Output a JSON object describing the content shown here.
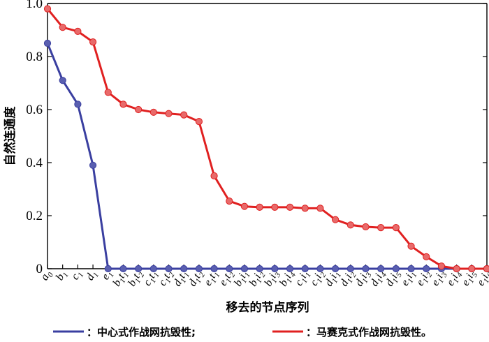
{
  "chart_data": {
    "type": "line",
    "ylabel": "自然连通度",
    "xlabel": "移去的节点序列",
    "ylim": [
      0,
      1.0
    ],
    "yticks": [
      "0",
      "0.2",
      "0.4",
      "0.6",
      "0.8",
      "1.0"
    ],
    "categories": [
      {
        "base": "a",
        "sub": "0"
      },
      {
        "base": "b",
        "sub": "1"
      },
      {
        "base": "c",
        "sub": "1"
      },
      {
        "base": "d",
        "sub": "1"
      },
      {
        "base": "e",
        "sub": "1"
      },
      {
        "base": "b",
        "sub": "1",
        "base2": "t",
        "sub2": "1"
      },
      {
        "base": "b",
        "sub": "1",
        "base2": "t",
        "sub2": "2"
      },
      {
        "base": "c",
        "sub": "1",
        "base2": "t",
        "sub2": "1"
      },
      {
        "base": "c",
        "sub": "1",
        "base2": "t",
        "sub2": "2"
      },
      {
        "base": "d",
        "sub": "1",
        "base2": "t",
        "sub2": "1"
      },
      {
        "base": "d",
        "sub": "1",
        "base2": "t",
        "sub2": "2"
      },
      {
        "base": "e",
        "sub": "1",
        "base2": "t",
        "sub2": "1"
      },
      {
        "base": "e",
        "sub": "1",
        "base2": "t",
        "sub2": "2"
      },
      {
        "base": "b",
        "sub": "1",
        "base2": "i",
        "sub2": "1"
      },
      {
        "base": "b",
        "sub": "1",
        "base2": "i",
        "sub2": "2"
      },
      {
        "base": "b",
        "sub": "1",
        "base2": "i",
        "sub2": "3"
      },
      {
        "base": "b",
        "sub": "1",
        "base2": "i",
        "sub2": "4"
      },
      {
        "base": "c",
        "sub": "1",
        "base2": "i",
        "sub2": "1"
      },
      {
        "base": "c",
        "sub": "1",
        "base2": "i",
        "sub2": "2"
      },
      {
        "base": "d",
        "sub": "1",
        "base2": "i",
        "sub2": "1"
      },
      {
        "base": "d",
        "sub": "1",
        "base2": "i",
        "sub2": "2"
      },
      {
        "base": "d",
        "sub": "1",
        "base2": "i",
        "sub2": "3"
      },
      {
        "base": "d",
        "sub": "1",
        "base2": "i",
        "sub2": "4"
      },
      {
        "base": "d",
        "sub": "1",
        "base2": "i",
        "sub2": "5"
      },
      {
        "base": "e",
        "sub": "1",
        "base2": "i",
        "sub2": "1"
      },
      {
        "base": "e",
        "sub": "1",
        "base2": "i",
        "sub2": "2"
      },
      {
        "base": "e",
        "sub": "1",
        "base2": "i",
        "sub2": "3"
      },
      {
        "base": "e",
        "sub": "1",
        "base2": "i",
        "sub2": "4"
      },
      {
        "base": "e",
        "sub": "1",
        "base2": "i",
        "sub2": "5"
      },
      {
        "base": "e",
        "sub": "1",
        "base2": "i",
        "sub2": "6"
      }
    ],
    "series": [
      {
        "name": "：中心式作战网抗毁性;",
        "color": "#3a3fa0",
        "values": [
          0.85,
          0.71,
          0.62,
          0.39,
          0.0,
          0.0,
          0.0,
          0.0,
          0.0,
          0.0,
          0.0,
          0.0,
          0.0,
          0.0,
          0.0,
          0.0,
          0.0,
          0.0,
          0.0,
          0.0,
          0.0,
          0.0,
          0.0,
          0.0,
          0.0,
          0.0,
          0.0,
          0.0,
          0.0,
          0.0
        ]
      },
      {
        "name": "：马赛克式作战网抗毁性。",
        "color": "#e02020",
        "values": [
          0.98,
          0.91,
          0.895,
          0.855,
          0.665,
          0.62,
          0.6,
          0.59,
          0.585,
          0.58,
          0.555,
          0.35,
          0.255,
          0.235,
          0.232,
          0.232,
          0.232,
          0.228,
          0.228,
          0.185,
          0.165,
          0.158,
          0.155,
          0.155,
          0.085,
          0.045,
          0.01,
          0.0,
          0.0,
          0.0
        ]
      }
    ],
    "grid": false,
    "legend": "bottom"
  }
}
